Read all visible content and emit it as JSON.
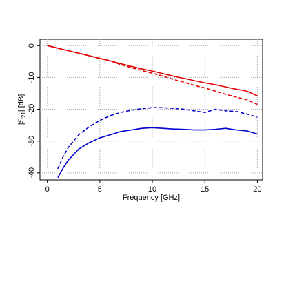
{
  "chart_data": {
    "type": "line",
    "xlabel": "Frequency [GHz]",
    "ylabel": {
      "pre": "|S",
      "sub": "21",
      "post": "| [dB]"
    },
    "x": [
      0,
      0.5,
      1,
      1.5,
      2,
      3,
      4,
      5,
      6,
      7,
      8,
      9,
      10,
      11,
      12,
      13,
      14,
      15,
      16,
      17,
      18,
      19,
      20
    ],
    "series": [
      {
        "color": "#e00000",
        "dash": false,
        "values": [
          0,
          -0.4,
          -0.8,
          -1.2,
          -1.6,
          -2.4,
          -3.2,
          -4,
          -4.8,
          -5.7,
          -6.5,
          -7.3,
          -8,
          -8.8,
          -9.6,
          -10.3,
          -11,
          -11.7,
          -12.3,
          -13,
          -13.7,
          -14.3,
          -15.8
        ]
      },
      {
        "color": "#e00000",
        "dash": true,
        "values": [
          0,
          -0.4,
          -0.8,
          -1.2,
          -1.6,
          -2.4,
          -3.2,
          -4,
          -4.8,
          -6,
          -6.9,
          -7.8,
          -8.7,
          -9.6,
          -10.6,
          -11.5,
          -12.5,
          -13.3,
          -14.3,
          -15.3,
          -16.2,
          -17,
          -18.5
        ]
      },
      {
        "color": "#0000d0",
        "dash": true,
        "values": [
          null,
          null,
          -38.7,
          -35,
          -32,
          -28,
          -25.5,
          -23.5,
          -22,
          -21,
          -20.3,
          -19.8,
          -19.5,
          -19.5,
          -19.7,
          -20,
          -20.5,
          -21,
          -20,
          -20.5,
          -20.7,
          -21.5,
          -22.5
        ]
      },
      {
        "color": "#0000d0",
        "dash": false,
        "values": [
          null,
          null,
          -41.5,
          -38.5,
          -36,
          -32.5,
          -30.5,
          -29,
          -28,
          -27,
          -26.5,
          -26,
          -25.8,
          -26,
          -26.2,
          -26.3,
          -26.5,
          -26.5,
          -26.3,
          -26,
          -26.5,
          -26.8,
          -27.8
        ]
      }
    ],
    "xlim": [
      -0.7,
      20.5
    ],
    "xticks": [
      0,
      5,
      10,
      15,
      20
    ],
    "ylim": [
      -42.2,
      2
    ],
    "yticks": [
      0,
      -10,
      -20,
      -30,
      -40
    ],
    "grid": true
  }
}
